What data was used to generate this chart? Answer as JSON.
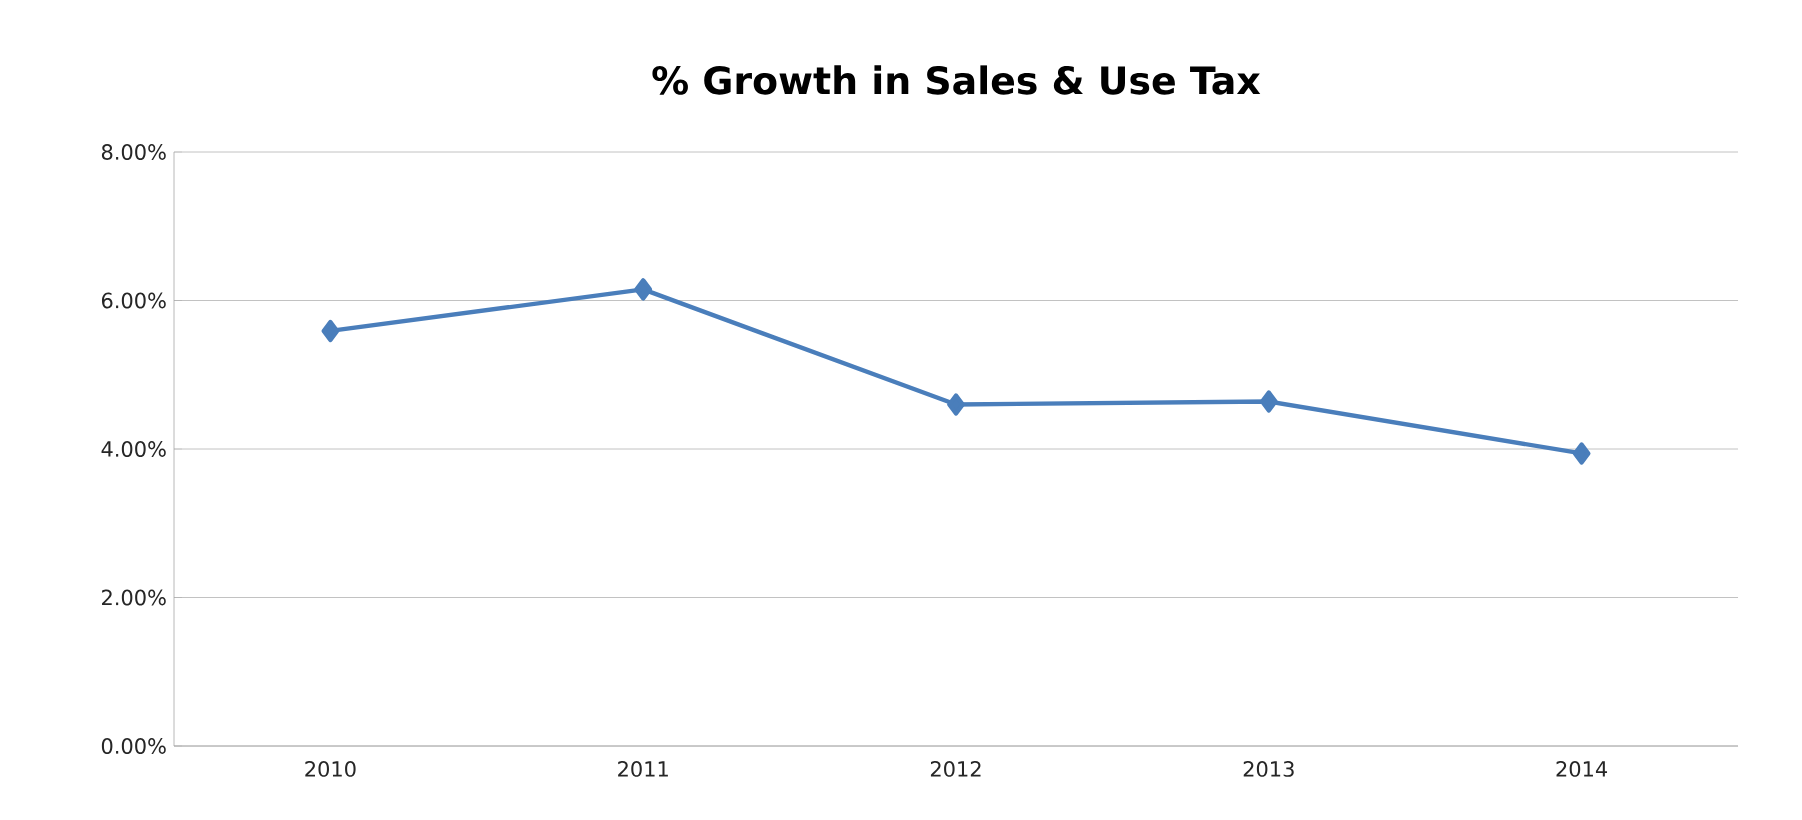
{
  "chart_data": {
    "type": "line",
    "title": "% Growth in Sales & Use Tax",
    "categories": [
      "2010",
      "2011",
      "2012",
      "2013",
      "2014"
    ],
    "series": [
      {
        "color": "#4a7ebb",
        "values": [
          5.59,
          6.15,
          4.6,
          4.64,
          3.94
        ]
      }
    ],
    "ylim": [
      0,
      8
    ],
    "yticks": [
      {
        "value": 0,
        "label": "0.00%"
      },
      {
        "value": 2,
        "label": "2.00%"
      },
      {
        "value": 4,
        "label": "4.00%"
      },
      {
        "value": 6,
        "label": "6.00%"
      },
      {
        "value": 8,
        "label": "8.00%"
      }
    ],
    "grid": "y",
    "marker": "diamond",
    "line_style": "solid"
  }
}
